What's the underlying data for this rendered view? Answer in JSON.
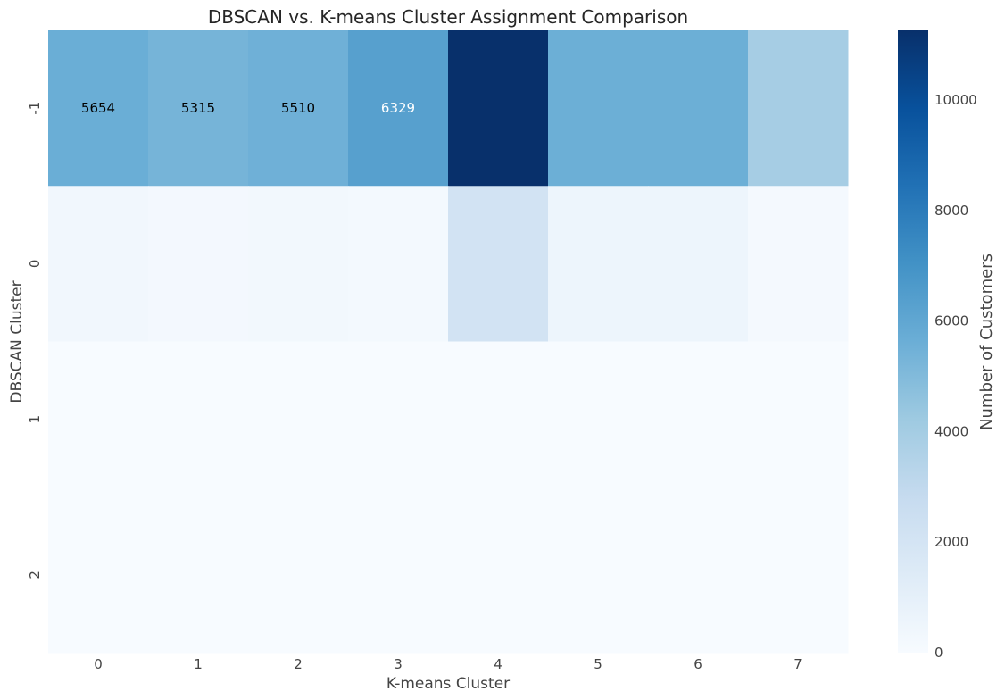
{
  "chart_data": {
    "type": "heatmap",
    "title": "DBSCAN vs. K-means Cluster Assignment Comparison",
    "xlabel": "K-means Cluster",
    "ylabel": "DBSCAN Cluster",
    "x_categories": [
      "0",
      "1",
      "2",
      "3",
      "4",
      "5",
      "6",
      "7"
    ],
    "y_categories": [
      "-1",
      "0",
      "1",
      "2"
    ],
    "values": [
      [
        5654,
        5315,
        5510,
        6329,
        11260,
        5600,
        5600,
        3950
      ],
      [
        350,
        250,
        300,
        200,
        2100,
        550,
        550,
        150
      ],
      [
        5,
        5,
        5,
        5,
        5,
        5,
        5,
        5
      ],
      [
        5,
        5,
        5,
        5,
        5,
        5,
        5,
        5
      ]
    ],
    "annotations": [
      {
        "row": 0,
        "col": 0,
        "text": "5654"
      },
      {
        "row": 0,
        "col": 1,
        "text": "5315"
      },
      {
        "row": 0,
        "col": 2,
        "text": "5510"
      },
      {
        "row": 0,
        "col": 3,
        "text": "6329"
      }
    ],
    "colorbar": {
      "label": "Number of Customers",
      "range": [
        0,
        11260
      ],
      "ticks": [
        0,
        2000,
        4000,
        6000,
        8000,
        10000
      ],
      "colormap": "Blues"
    }
  }
}
